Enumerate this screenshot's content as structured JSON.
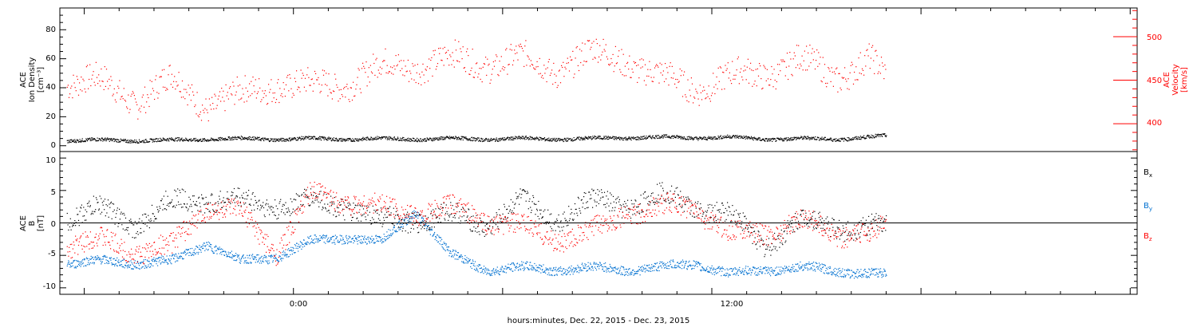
{
  "chart_data": [
    {
      "type": "scatter",
      "panel": "top",
      "ylabel_left": [
        "ACE",
        "Ion Density",
        "[cm⁻³]"
      ],
      "ylabel_right": [
        "ACE",
        "Velocity",
        "[km/s]"
      ],
      "yticks_left": [
        "0",
        "20",
        "40",
        "60",
        "80"
      ],
      "ylim_left": [
        -4,
        95
      ],
      "yticks_right": [
        "400",
        "450",
        "500"
      ],
      "ylim_right": [
        368,
        533
      ],
      "x_range_hours": [
        -6.7,
        24.2
      ],
      "data_end_hour": 17.1,
      "series": [
        {
          "name": "Ion Density",
          "color": "#000000",
          "axis": "left",
          "x": [
            -6.5,
            -5.5,
            -4.5,
            -3.5,
            -2.5,
            -1.5,
            -0.5,
            0.5,
            1.5,
            2.5,
            3.5,
            4.5,
            5.5,
            6.5,
            7.5,
            8.5,
            9.5,
            10.5,
            11.5,
            12.5,
            13.5,
            14.5,
            15.5,
            16.5,
            17.0
          ],
          "y": [
            4,
            4,
            4,
            4,
            5,
            5,
            5,
            5,
            5,
            5,
            5,
            5,
            5,
            5,
            5,
            5,
            6,
            6,
            6,
            6,
            5,
            5,
            5,
            6,
            7
          ]
        },
        {
          "name": "Velocity",
          "color": "#ff0000",
          "axis": "right",
          "x": [
            -6.5,
            -5.5,
            -4.5,
            -3.5,
            -2.5,
            -1.5,
            -0.5,
            0.5,
            1.5,
            2.5,
            3.5,
            4.5,
            5.5,
            6.5,
            7.5,
            8.5,
            9.5,
            10.5,
            11.5,
            12.5,
            13.5,
            14.5,
            15.5,
            16.5,
            17.0
          ],
          "y": [
            452,
            445,
            430,
            448,
            425,
            430,
            450,
            440,
            450,
            462,
            470,
            472,
            472,
            472,
            465,
            478,
            478,
            450,
            445,
            450,
            462,
            470,
            458,
            470,
            450
          ]
        }
      ]
    },
    {
      "type": "scatter",
      "panel": "bottom",
      "ylabel": [
        "ACE",
        "B",
        "[nT]"
      ],
      "yticks": [
        "-10",
        "-5",
        "0",
        "5",
        "10"
      ],
      "ylim": [
        -11,
        11
      ],
      "zero_line": true,
      "xticks": [
        "0:00",
        "12:00"
      ],
      "xlabel": "hours:minutes, Dec. 22, 2015 - Dec. 23, 2015",
      "x_range_hours": [
        -6.7,
        24.2
      ],
      "series": [
        {
          "name": "Bx",
          "label_main": "B",
          "label_sub": "x",
          "color": "#000000",
          "x": [
            -6.5,
            -5.5,
            -4.5,
            -3.5,
            -2.5,
            -1.5,
            -0.5,
            0.5,
            1.5,
            2.5,
            3.5,
            4.5,
            5.5,
            6.5,
            7.5,
            8.5,
            9.5,
            10.5,
            11.5,
            12.5,
            13.5,
            14.5,
            15.5,
            16.5,
            17.0
          ],
          "y": [
            1,
            2,
            0,
            3,
            4,
            3,
            3,
            3,
            3,
            0,
            1,
            1,
            0,
            3,
            1,
            3,
            3,
            4,
            3,
            1,
            -3,
            0,
            0,
            -1,
            -1
          ]
        },
        {
          "name": "By",
          "label_main": "B",
          "label_sub": "y",
          "color": "#0070d0",
          "x": [
            -6.5,
            -5.5,
            -4.5,
            -3.5,
            -2.5,
            -1.5,
            -0.5,
            0.5,
            1.5,
            2.5,
            3.5,
            4.5,
            5.5,
            6.5,
            7.5,
            8.5,
            9.5,
            10.5,
            11.5,
            12.5,
            13.5,
            14.5,
            15.5,
            16.5,
            17.0
          ],
          "y": [
            -6,
            -6,
            -6,
            -6,
            -3,
            -6,
            -5,
            -3,
            -2,
            -3,
            2,
            -5,
            -7,
            -7,
            -7,
            -7,
            -7,
            -7,
            -6,
            -8,
            -7,
            -7,
            -7,
            -8,
            -8
          ]
        },
        {
          "name": "Bz",
          "label_main": "B",
          "label_sub": "z",
          "color": "#ff0000",
          "x": [
            -6.5,
            -5.5,
            -4.5,
            -3.5,
            -2.5,
            -1.5,
            -0.5,
            0.5,
            1.5,
            2.5,
            3.5,
            4.5,
            5.5,
            6.5,
            7.5,
            8.5,
            9.5,
            10.5,
            11.5,
            12.5,
            13.5,
            14.5,
            15.5,
            16.5,
            17.0
          ],
          "y": [
            -3,
            -3,
            -4,
            -4,
            3,
            1,
            -4,
            4,
            4,
            2,
            2,
            2,
            1,
            -1,
            -2,
            -2,
            2,
            2,
            3,
            -2,
            -1,
            0,
            -1,
            -2,
            -1
          ]
        }
      ]
    }
  ]
}
